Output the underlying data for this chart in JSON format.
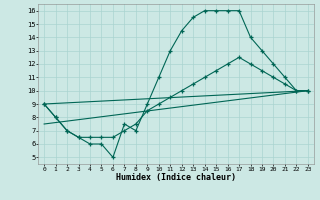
{
  "xlabel": "Humidex (Indice chaleur)",
  "bg_color": "#cce8e4",
  "grid_color": "#aad4d0",
  "line_color": "#006655",
  "xlim": [
    -0.5,
    23.5
  ],
  "ylim": [
    4.5,
    16.5
  ],
  "xticks": [
    0,
    1,
    2,
    3,
    4,
    5,
    6,
    7,
    8,
    9,
    10,
    11,
    12,
    13,
    14,
    15,
    16,
    17,
    18,
    19,
    20,
    21,
    22,
    23
  ],
  "yticks": [
    5,
    6,
    7,
    8,
    9,
    10,
    11,
    12,
    13,
    14,
    15,
    16
  ],
  "main_line_x": [
    0,
    1,
    2,
    3,
    4,
    5,
    6,
    7,
    8,
    9,
    10,
    11,
    12,
    13,
    14,
    15,
    16,
    17,
    18,
    19,
    20,
    21,
    22,
    23
  ],
  "main_line_y": [
    9.0,
    8.0,
    7.0,
    6.5,
    6.0,
    6.0,
    5.0,
    7.5,
    7.0,
    9.0,
    11.0,
    13.0,
    14.5,
    15.5,
    16.0,
    16.0,
    16.0,
    16.0,
    14.0,
    13.0,
    12.0,
    11.0,
    10.0,
    10.0
  ],
  "line2_x": [
    0,
    1,
    2,
    3,
    4,
    5,
    6,
    7,
    8,
    9,
    10,
    11,
    12,
    13,
    14,
    15,
    16,
    17,
    18,
    19,
    20,
    21,
    22,
    23
  ],
  "line2_y": [
    9.0,
    8.0,
    7.0,
    6.5,
    6.5,
    6.5,
    6.5,
    7.0,
    7.5,
    8.5,
    9.0,
    9.5,
    10.0,
    10.5,
    11.0,
    11.5,
    12.0,
    12.5,
    12.0,
    11.5,
    11.0,
    10.5,
    10.0,
    10.0
  ],
  "line3_x": [
    0,
    23
  ],
  "line3_y": [
    9.0,
    10.0
  ],
  "line4_x": [
    0,
    23
  ],
  "line4_y": [
    7.5,
    10.0
  ]
}
